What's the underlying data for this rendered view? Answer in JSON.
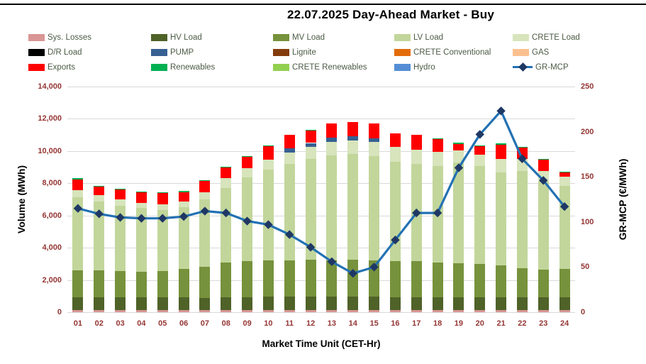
{
  "title": "22.07.2025  Day-Ahead Market - Buy",
  "legend": [
    {
      "label": "Sys. Losses",
      "color": "#D99694",
      "type": "swatch"
    },
    {
      "label": "HV Load",
      "color": "#4F6228",
      "type": "swatch"
    },
    {
      "label": "MV Load",
      "color": "#76923C",
      "type": "swatch"
    },
    {
      "label": "LV Load",
      "color": "#C2D69B",
      "type": "swatch"
    },
    {
      "label": "CRETE Load",
      "color": "#D7E4BC",
      "type": "swatch"
    },
    {
      "label": "D/R Load",
      "color": "#000000",
      "type": "swatch"
    },
    {
      "label": "PUMP",
      "color": "#376092",
      "type": "swatch"
    },
    {
      "label": "Lignite",
      "color": "#843C0C",
      "type": "swatch"
    },
    {
      "label": "CRETE Conventional",
      "color": "#E36C0A",
      "type": "swatch"
    },
    {
      "label": "GAS",
      "color": "#FAC090",
      "type": "swatch"
    },
    {
      "label": "Exports",
      "color": "#FF0000",
      "type": "swatch"
    },
    {
      "label": "Renewables",
      "color": "#00B050",
      "type": "swatch"
    },
    {
      "label": "CRETE Renewables",
      "color": "#92D050",
      "type": "swatch"
    },
    {
      "label": "Hydro",
      "color": "#558ED5",
      "type": "swatch"
    },
    {
      "label": "GR-MCP",
      "color": "#2271B3",
      "marker_color": "#1F3864",
      "type": "line"
    }
  ],
  "chart_data": {
    "type": "bar",
    "stacked": true,
    "title": "22.07.2025  Day-Ahead Market - Buy",
    "xlabel": "Market Time Unit (CET-Hr)",
    "ylabel_left": "Volume (MWh)",
    "ylabel_right": "GR-MCP (€/MWh)",
    "ylim_left": [
      0,
      14000
    ],
    "ylim_right": [
      0,
      250
    ],
    "yticks_left": [
      "0",
      "2,000",
      "4,000",
      "6,000",
      "8,000",
      "10,000",
      "12,000",
      "14,000"
    ],
    "yticks_right": [
      "0",
      "50",
      "100",
      "150",
      "200",
      "250"
    ],
    "grid": true,
    "legend_position": "top",
    "categories": [
      "01",
      "02",
      "03",
      "04",
      "05",
      "06",
      "07",
      "08",
      "09",
      "10",
      "11",
      "12",
      "13",
      "14",
      "15",
      "16",
      "17",
      "18",
      "19",
      "20",
      "21",
      "22",
      "23",
      "24"
    ],
    "series": [
      {
        "name": "Sys. Losses",
        "color": "#D99694",
        "values": [
          130,
          130,
          130,
          130,
          130,
          130,
          130,
          130,
          130,
          140,
          140,
          140,
          140,
          140,
          140,
          140,
          140,
          130,
          130,
          130,
          130,
          130,
          130,
          130
        ]
      },
      {
        "name": "HV Load",
        "color": "#4F6228",
        "values": [
          800,
          800,
          790,
          790,
          790,
          800,
          770,
          800,
          800,
          810,
          810,
          810,
          810,
          810,
          810,
          790,
          790,
          790,
          790,
          790,
          780,
          790,
          790,
          790
        ]
      },
      {
        "name": "MV Load",
        "color": "#76923C",
        "values": [
          1650,
          1670,
          1630,
          1610,
          1630,
          1750,
          1930,
          2170,
          2250,
          2280,
          2280,
          2300,
          2280,
          2300,
          2280,
          2240,
          2220,
          2160,
          2110,
          2060,
          2010,
          1800,
          1730,
          1780
        ]
      },
      {
        "name": "LV Load",
        "color": "#C2D69B",
        "values": [
          4570,
          4250,
          4050,
          3920,
          3800,
          3820,
          4150,
          4600,
          5170,
          5620,
          5970,
          6250,
          6520,
          6550,
          6470,
          6180,
          6050,
          5970,
          6240,
          6070,
          5760,
          6030,
          5450,
          5150
        ]
      },
      {
        "name": "CRETE Load",
        "color": "#D7E4BC",
        "values": [
          420,
          400,
          400,
          350,
          350,
          350,
          470,
          600,
          600,
          630,
          700,
          750,
          810,
          850,
          850,
          900,
          900,
          900,
          760,
          740,
          810,
          770,
          650,
          570
        ]
      },
      {
        "name": "D/R Load",
        "color": "#000000",
        "values": [
          0,
          0,
          0,
          0,
          0,
          0,
          0,
          0,
          0,
          0,
          0,
          0,
          0,
          0,
          0,
          0,
          0,
          0,
          0,
          0,
          0,
          0,
          0,
          0
        ]
      },
      {
        "name": "PUMP",
        "color": "#376092",
        "values": [
          0,
          0,
          0,
          0,
          0,
          0,
          0,
          0,
          0,
          0,
          250,
          250,
          250,
          250,
          250,
          0,
          0,
          0,
          0,
          0,
          0,
          0,
          0,
          0
        ]
      },
      {
        "name": "Lignite",
        "color": "#843C0C",
        "values": [
          0,
          0,
          0,
          0,
          0,
          0,
          0,
          0,
          0,
          0,
          0,
          0,
          0,
          0,
          0,
          0,
          0,
          0,
          0,
          0,
          0,
          0,
          0,
          0
        ]
      },
      {
        "name": "CRETE Conventional",
        "color": "#E36C0A",
        "values": [
          0,
          0,
          0,
          0,
          0,
          0,
          0,
          0,
          0,
          0,
          0,
          0,
          0,
          0,
          0,
          0,
          0,
          0,
          0,
          0,
          0,
          0,
          0,
          0
        ]
      },
      {
        "name": "GAS",
        "color": "#FAC090",
        "values": [
          0,
          0,
          0,
          0,
          0,
          0,
          0,
          0,
          0,
          0,
          0,
          0,
          0,
          0,
          0,
          0,
          0,
          0,
          0,
          0,
          0,
          0,
          0,
          0
        ]
      },
      {
        "name": "Exports",
        "color": "#FF0000",
        "values": [
          680,
          550,
          600,
          650,
          700,
          600,
          700,
          670,
          700,
          820,
          850,
          750,
          890,
          900,
          900,
          850,
          900,
          800,
          420,
          500,
          890,
          680,
          710,
          240
        ]
      },
      {
        "name": "Renewables",
        "color": "#00B050",
        "values": [
          50,
          50,
          50,
          50,
          50,
          70,
          50,
          50,
          50,
          50,
          0,
          50,
          0,
          0,
          0,
          0,
          0,
          50,
          70,
          70,
          90,
          50,
          60,
          40
        ]
      },
      {
        "name": "CRETE Renewables",
        "color": "#92D050",
        "values": [
          0,
          0,
          0,
          0,
          0,
          0,
          0,
          0,
          0,
          0,
          0,
          0,
          0,
          0,
          0,
          0,
          0,
          0,
          0,
          0,
          0,
          0,
          0,
          0
        ]
      },
      {
        "name": "Hydro",
        "color": "#558ED5",
        "values": [
          0,
          0,
          0,
          0,
          0,
          0,
          0,
          0,
          0,
          0,
          0,
          0,
          0,
          0,
          0,
          0,
          0,
          0,
          0,
          0,
          0,
          0,
          0,
          0
        ]
      }
    ],
    "line_series": {
      "name": "GR-MCP",
      "axis": "right",
      "color": "#2271B3",
      "marker_color": "#1F3864",
      "values": [
        115,
        109,
        105,
        104,
        104,
        106,
        112,
        110,
        101,
        97,
        86,
        72,
        56,
        43,
        50,
        80,
        110,
        110,
        160,
        197,
        223,
        170,
        146,
        117
      ]
    }
  }
}
